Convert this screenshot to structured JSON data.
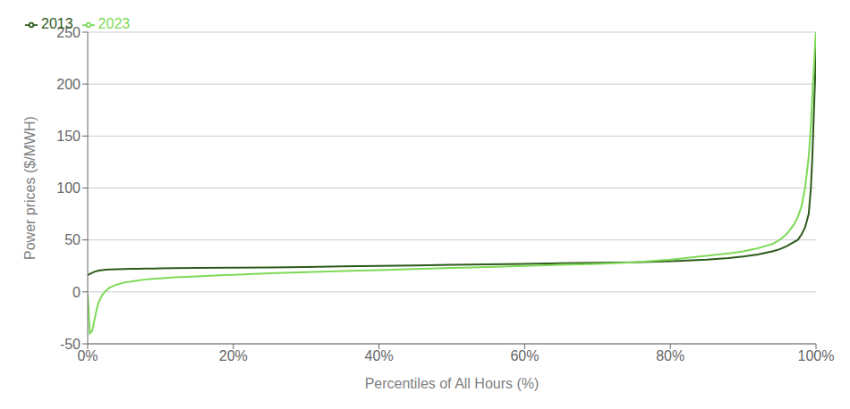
{
  "chart_data": {
    "type": "line",
    "xlabel": "Percentiles of All Hours (%)",
    "ylabel": "Power prices ($/MWH)",
    "xlim": [
      0,
      1
    ],
    "ylim": [
      -50,
      250
    ],
    "xticks": [
      {
        "value": 0,
        "label": "0%"
      },
      {
        "value": 0.2,
        "label": "20%"
      },
      {
        "value": 0.4,
        "label": "40%"
      },
      {
        "value": 0.6,
        "label": "60%"
      },
      {
        "value": 0.8,
        "label": "80%"
      },
      {
        "value": 1.0,
        "label": "100%"
      }
    ],
    "yticks": [
      -50,
      0,
      50,
      100,
      150,
      200,
      250
    ],
    "grid": true,
    "legend": "upper left",
    "series": [
      {
        "name": "2013",
        "color": "#2D5A1B",
        "x": [
          0.0,
          0.005,
          0.01,
          0.015,
          0.02,
          0.025,
          0.03,
          0.04,
          0.05,
          0.06,
          0.07,
          0.08,
          0.09,
          0.1,
          0.12,
          0.15,
          0.2,
          0.25,
          0.3,
          0.35,
          0.4,
          0.45,
          0.5,
          0.55,
          0.6,
          0.65,
          0.7,
          0.75,
          0.8,
          0.85,
          0.88,
          0.9,
          0.92,
          0.93,
          0.94,
          0.95,
          0.96,
          0.97,
          0.975,
          0.98,
          0.985,
          0.99,
          0.993,
          0.995,
          0.997,
          0.999,
          1.0
        ],
        "values": [
          16,
          18,
          19.5,
          20.5,
          21,
          21.3,
          21.5,
          21.8,
          22,
          22.2,
          22.3,
          22.4,
          22.5,
          22.6,
          22.8,
          23,
          23.3,
          23.6,
          24,
          24.5,
          25,
          25.5,
          26,
          26.5,
          27,
          27.5,
          28,
          28.5,
          29.5,
          31,
          32.5,
          34,
          36,
          37.5,
          39,
          41,
          44,
          48,
          50,
          55,
          62,
          75,
          100,
          130,
          170,
          210,
          250
        ]
      },
      {
        "name": "2023",
        "color": "#7ED957",
        "x": [
          0.0,
          0.003,
          0.006,
          0.009,
          0.012,
          0.015,
          0.02,
          0.025,
          0.03,
          0.04,
          0.05,
          0.06,
          0.07,
          0.08,
          0.09,
          0.1,
          0.12,
          0.15,
          0.2,
          0.25,
          0.3,
          0.35,
          0.4,
          0.45,
          0.5,
          0.55,
          0.6,
          0.65,
          0.7,
          0.75,
          0.8,
          0.82,
          0.84,
          0.86,
          0.88,
          0.9,
          0.91,
          0.92,
          0.93,
          0.94,
          0.95,
          0.96,
          0.97,
          0.975,
          0.98,
          0.985,
          0.99,
          0.993,
          0.995,
          0.997,
          0.999,
          1.0
        ],
        "values": [
          -2,
          -40,
          -38,
          -28,
          -18,
          -10,
          -3,
          1,
          4,
          7,
          9,
          10,
          11,
          12,
          12.5,
          13,
          14,
          15,
          16.5,
          18,
          19,
          20,
          21,
          22,
          23,
          24,
          25,
          26,
          27,
          28.5,
          31,
          32.5,
          34,
          35.5,
          37,
          39,
          40.5,
          42,
          44,
          46,
          50,
          56,
          65,
          72,
          82,
          100,
          130,
          160,
          190,
          215,
          240,
          250
        ]
      }
    ]
  }
}
